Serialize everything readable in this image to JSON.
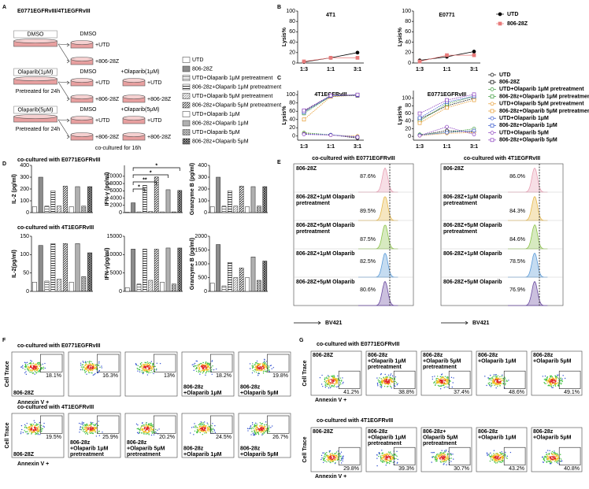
{
  "panels": {
    "A": {
      "label": "A",
      "title": "E0771EGFRvIII/4T1EGFRvIII",
      "groups": [
        {
          "dish": "DMSO",
          "columns": [
            {
              "head": "DMSO",
              "wells": [
                "+UTD",
                "+806-28Z"
              ]
            }
          ]
        },
        {
          "dish": "Olaparib(1μM)",
          "note": "Pretreated for 24h",
          "columns": [
            {
              "head": "DMSO",
              "wells": [
                "+UTD",
                "+806-28Z"
              ]
            },
            {
              "head": "+Olaparib(1μM)",
              "wells": [
                "+UTD",
                "+806-28Z"
              ]
            }
          ]
        },
        {
          "dish": "Olaparib(5μM)",
          "note": "Pretreated for 24h",
          "columns": [
            {
              "head": "DMSO",
              "wells": [
                "+UTD",
                "+806-28Z"
              ]
            },
            {
              "head": "+Olaparib(5μM)",
              "wells": [
                "+UTD",
                "+806-28Z"
              ]
            }
          ]
        }
      ],
      "footer": "co-cultured for 16h",
      "legend": [
        {
          "label": "UTD",
          "color": "#ffffff",
          "pattern": null
        },
        {
          "label": "806-28Z",
          "color": "#8c8c8c",
          "pattern": null
        },
        {
          "label": "UTD+Olaparib 1μM pretreatment",
          "color": "#777777",
          "pattern": "h"
        },
        {
          "label": "806-28z+Olaparib 1μM pretreatment",
          "color": "#333333",
          "pattern": "h"
        },
        {
          "label": "UTD+Olaparib 5μM pretreatment",
          "color": "#999999",
          "pattern": "d"
        },
        {
          "label": "806-28z+Olaparib 5μM pretreatment",
          "color": "#333333",
          "pattern": "d"
        },
        {
          "label": "UTD+Olaparib 1μM",
          "color": "#ffffff",
          "pattern": null
        },
        {
          "label": "806-28z+Olaparib 1μM",
          "color": "#b0b0b0",
          "pattern": null
        },
        {
          "label": "UTD+Olaparib 5μM",
          "color": "#888888",
          "pattern": "x"
        },
        {
          "label": "806-28z+Olaparib 5μM",
          "color": "#333333",
          "pattern": "x"
        }
      ]
    },
    "B": {
      "label": "B"
    },
    "C": {
      "label": "C"
    },
    "D": {
      "label": "D",
      "rows": [
        "co-cultured with E0771EGFRvIII",
        "co-cultured with 4T1EGFRvIII"
      ]
    },
    "E": {
      "label": "E",
      "axis": "BV421",
      "blocks": [
        {
          "title": "co-cultured with E0771EGFRvIII",
          "rows": [
            {
              "name": [
                "806-28Z"
              ],
              "pct": "87.6%"
            },
            {
              "name": [
                "806-28Z+1μM Olaparib",
                "pretreatment"
              ],
              "pct": "89.5%"
            },
            {
              "name": [
                "806-28Z+5μM Olaparib",
                "pretreatment"
              ],
              "pct": "87.5%"
            },
            {
              "name": [
                "806-28Z+1μM Olaparib"
              ],
              "pct": "82.5%"
            },
            {
              "name": [
                "806-28Z+5μM Olaparib"
              ],
              "pct": "80.6%"
            }
          ]
        },
        {
          "title": "co-cultured with 4T1EGFRvIII",
          "rows": [
            {
              "name": [
                "806-28Z"
              ],
              "pct": "86.0%"
            },
            {
              "name": [
                "806-28Z+1μM Olaparib",
                "pretreatment"
              ],
              "pct": "84.3%"
            },
            {
              "name": [
                "806-28Z+5μM Olaparib",
                "pretreatment"
              ],
              "pct": "84.6%"
            },
            {
              "name": [
                "806-28Z+1μM Olaparib"
              ],
              "pct": "78.5%"
            },
            {
              "name": [
                "806-28Z+5μM Olaparib"
              ],
              "pct": "76.9%"
            }
          ]
        }
      ]
    },
    "F": {
      "label": "F",
      "y_axis": "Cell Trace",
      "x_axis": "Annexin V +",
      "rows": [
        {
          "title": "co-cultured with E0771EGFRvIII",
          "plots": [
            {
              "name": [
                "806-28Z"
              ],
              "pct": "18.1%"
            },
            {
              "pct": "16.3%"
            },
            {
              "pct": "13%"
            },
            {
              "name": [
                "806-28z",
                "+Olaparib 1μM"
              ],
              "pct": "18.2%"
            },
            {
              "name": [
                "806-28z",
                "+Olaparib 5μM"
              ],
              "pct": "19.8%"
            }
          ]
        },
        {
          "title": "co-cultured with 4T1EGFRvIII",
          "plots": [
            {
              "name": [
                "806-28Z"
              ],
              "pct": "19.5%"
            },
            {
              "name": [
                "806-28z",
                "+Olaparib 1μM",
                "pretreatment"
              ],
              "pct": "25.9%"
            },
            {
              "name": [
                "806-28z",
                "+Olaparib 5μM",
                "pretreatment"
              ],
              "pct": "20.2%"
            },
            {
              "name": [
                "806-28z",
                "+Olaparib 1μM"
              ],
              "pct": "24.5%"
            },
            {
              "name": [
                "806-28z",
                "+Olaparib 5μM"
              ],
              "pct": "26.7%"
            }
          ]
        }
      ]
    },
    "G": {
      "label": "G",
      "y_axis": "Cell Trace",
      "x_axis": "Annexin V +",
      "rows": [
        {
          "title": "co-cultured with E0771EGFRvIII",
          "plots": [
            {
              "name": [
                "806-28Z"
              ],
              "pct": "41.2%"
            },
            {
              "name": [
                "806-28z",
                "+Olaparib 1μM",
                "pretreatment"
              ],
              "pct": "38.8%"
            },
            {
              "name": [
                "806-28z",
                "+Olaparib 5μM",
                "pretreatment"
              ],
              "pct": "37.4%"
            },
            {
              "name": [
                "806-28z",
                "+Olaparib 1μM"
              ],
              "pct": "48.6%"
            },
            {
              "name": [
                "806-28z",
                "+Olaparib 5μM"
              ],
              "pct": "49.1%"
            }
          ]
        },
        {
          "title": "co-cultured with 4T1EGFRvIII",
          "plots": [
            {
              "name": [
                "806-28Z"
              ],
              "pct": "29.8%"
            },
            {
              "name": [
                "806-28z",
                "+Olaparib 1μM",
                "pretreatment"
              ],
              "pct": "39.3%"
            },
            {
              "name": [
                "806-28z+",
                "Olaparib 5μM",
                "pretreatment"
              ],
              "pct": "30.7%"
            },
            {
              "name": [
                "806-28z",
                "+Olaparib 1μM"
              ],
              "pct": "43.2%"
            },
            {
              "name": [
                "806-28z",
                "+Olaparib 5μM"
              ],
              "pct": "40.8%"
            }
          ]
        }
      ]
    }
  },
  "chart_data": [
    {
      "type": "line",
      "title": "4T1",
      "y_label": "Lysis%",
      "categories": [
        "1:3",
        "1:1",
        "3:1"
      ],
      "ylim": [
        0,
        100
      ],
      "yticks": [
        0,
        20,
        40,
        60,
        80,
        100
      ],
      "series": [
        {
          "name": "UTD",
          "color": "#000000",
          "values": [
            2,
            10,
            20
          ]
        },
        {
          "name": "806-28Z",
          "color": "#e87a7a",
          "values": [
            3,
            10,
            10
          ]
        }
      ]
    },
    {
      "type": "line",
      "title": "E0771",
      "y_label": "Lysis%",
      "categories": [
        "1:3",
        "1:1",
        "3:1"
      ],
      "ylim": [
        0,
        100
      ],
      "yticks": [
        0,
        20,
        40,
        60,
        80,
        100
      ],
      "series": [
        {
          "name": "UTD",
          "color": "#000000",
          "values": [
            5,
            12,
            22
          ]
        },
        {
          "name": "806-28Z",
          "color": "#e87a7a",
          "values": [
            3,
            15,
            15
          ]
        }
      ]
    },
    {
      "type": "line",
      "title": "4T1EGFRvIII",
      "y_label": "Lysis%",
      "categories": [
        "1:3",
        "1:1",
        "3:1"
      ],
      "ylim": [
        -10,
        110
      ],
      "yticks": [
        0,
        20,
        40,
        60,
        80,
        100
      ],
      "series": [
        {
          "name": "UTD",
          "color": "#000000",
          "values": [
            5,
            3,
            -5
          ]
        },
        {
          "name": "806-28Z",
          "color": "#000000",
          "values": [
            60,
            97,
            98
          ]
        },
        {
          "name": "UTD+Olaparib 1μM pretreatment",
          "color": "#3a9a3a",
          "values": [
            8,
            3,
            -3
          ]
        },
        {
          "name": "806-28z+Olaparib 1μM pretreatment",
          "color": "#3a9a3a",
          "values": [
            55,
            96,
            100
          ]
        },
        {
          "name": "UTD+Olaparib 5μM pretreatment",
          "color": "#e69a2e",
          "values": [
            6,
            2,
            0
          ]
        },
        {
          "name": "806-28z+Olaparib 5μM pretreatment",
          "color": "#e69a2e",
          "values": [
            40,
            95,
            99
          ]
        },
        {
          "name": "UTD+Olaparib 1μM",
          "color": "#3355cc",
          "values": [
            5,
            3,
            -2
          ]
        },
        {
          "name": "806-28z+Olaparib 1μM",
          "color": "#3355cc",
          "values": [
            58,
            97,
            99
          ]
        },
        {
          "name": "UTD+Olaparib 5μM",
          "color": "#8a3fbf",
          "values": [
            4,
            2,
            -3
          ]
        },
        {
          "name": "806-28z+Olaparib 5μM",
          "color": "#8a3fbf",
          "values": [
            62,
            98,
            100
          ]
        }
      ]
    },
    {
      "type": "line",
      "title": "E0771EGFRvIII",
      "y_label": "Lysis%",
      "categories": [
        "1:3",
        "1:1",
        "3:1"
      ],
      "ylim": [
        -10,
        120
      ],
      "yticks": [
        0,
        20,
        40,
        60,
        80,
        100
      ],
      "series": [
        {
          "name": "UTD",
          "color": "#000000",
          "values": [
            3,
            15,
            12
          ]
        },
        {
          "name": "806-28Z",
          "color": "#000000",
          "values": [
            45,
            80,
            100
          ]
        },
        {
          "name": "UTD+Olaparib 1μM pretreatment",
          "color": "#3a9a3a",
          "values": [
            5,
            10,
            20
          ]
        },
        {
          "name": "806-28z+Olaparib 1μM pretreatment",
          "color": "#3a9a3a",
          "values": [
            40,
            85,
            105
          ]
        },
        {
          "name": "UTD+Olaparib 5μM pretreatment",
          "color": "#e69a2e",
          "values": [
            2,
            8,
            10
          ]
        },
        {
          "name": "806-28z+Olaparib 5μM pretreatment",
          "color": "#e69a2e",
          "values": [
            35,
            75,
            95
          ]
        },
        {
          "name": "UTD+Olaparib 1μM",
          "color": "#3355cc",
          "values": [
            3,
            10,
            15
          ]
        },
        {
          "name": "806-28z+Olaparib 1μM",
          "color": "#3355cc",
          "values": [
            48,
            90,
            105
          ]
        },
        {
          "name": "UTD+Olaparib 5μM",
          "color": "#8a3fbf",
          "values": [
            2,
            25,
            5
          ]
        },
        {
          "name": "806-28z+Olaparib 5μM",
          "color": "#8a3fbf",
          "values": [
            60,
            95,
            110
          ]
        }
      ]
    },
    {
      "type": "bar",
      "y_label": "IL-2 (pg/ml)",
      "categories": [
        null,
        null,
        null,
        null,
        null,
        null,
        null,
        null,
        null,
        null
      ],
      "values": [
        50,
        300,
        55,
        185,
        55,
        225,
        50,
        220,
        55,
        220
      ],
      "ylim": [
        0,
        400
      ],
      "yticks": [
        0,
        100,
        200,
        300,
        400
      ]
    },
    {
      "type": "bar",
      "y_label": "IFN-γ (pg/ml)",
      "categories": [
        null,
        null,
        null,
        null,
        null,
        null,
        null,
        null,
        null,
        null
      ],
      "values": [
        100,
        2700,
        200,
        7500,
        300,
        9800,
        200,
        6300,
        200,
        6100
      ],
      "ylim": [
        0,
        13000
      ],
      "yticks": [
        0,
        2000,
        4000,
        6000,
        8000,
        10000
      ],
      "annotations": [
        "*",
        "**",
        "*",
        "*"
      ]
    },
    {
      "type": "bar",
      "y_label": "Granzyme B (pg/ml)",
      "categories": [
        null,
        null,
        null,
        null,
        null,
        null,
        null,
        null,
        null,
        null
      ],
      "values": [
        50,
        300,
        55,
        185,
        55,
        225,
        50,
        220,
        55,
        220
      ],
      "ylim": [
        0,
        400
      ],
      "yticks": [
        0,
        100,
        200,
        300,
        400
      ]
    },
    {
      "type": "bar",
      "y_label": "IL-2(pg/ml)",
      "categories": [
        null,
        null,
        null,
        null,
        null,
        null,
        null,
        null,
        null,
        null
      ],
      "values": [
        25,
        125,
        28,
        130,
        33,
        130,
        25,
        130,
        40,
        105
      ],
      "ylim": [
        0,
        150
      ],
      "yticks": [
        0,
        50,
        100,
        150
      ]
    },
    {
      "type": "bar",
      "y_label": "IFN-γ(pg/ml)",
      "categories": [
        null,
        null,
        null,
        null,
        null,
        null,
        null,
        null,
        null,
        null
      ],
      "values": [
        1000,
        11500,
        2000,
        11500,
        3000,
        11500,
        2500,
        11800,
        2000,
        11800
      ],
      "ylim": [
        0,
        15000
      ],
      "yticks": [
        0,
        5000,
        10000,
        15000
      ]
    },
    {
      "type": "bar",
      "y_label": "Granzyme B (pg/ml)",
      "categories": [
        null,
        null,
        null,
        null,
        null,
        null,
        null,
        null,
        null,
        null
      ],
      "values": [
        300,
        1700,
        200,
        1050,
        500,
        850,
        500,
        1250,
        400,
        1100
      ],
      "ylim": [
        0,
        2000
      ],
      "yticks": [
        0,
        500,
        1000,
        1500,
        2000
      ]
    }
  ]
}
